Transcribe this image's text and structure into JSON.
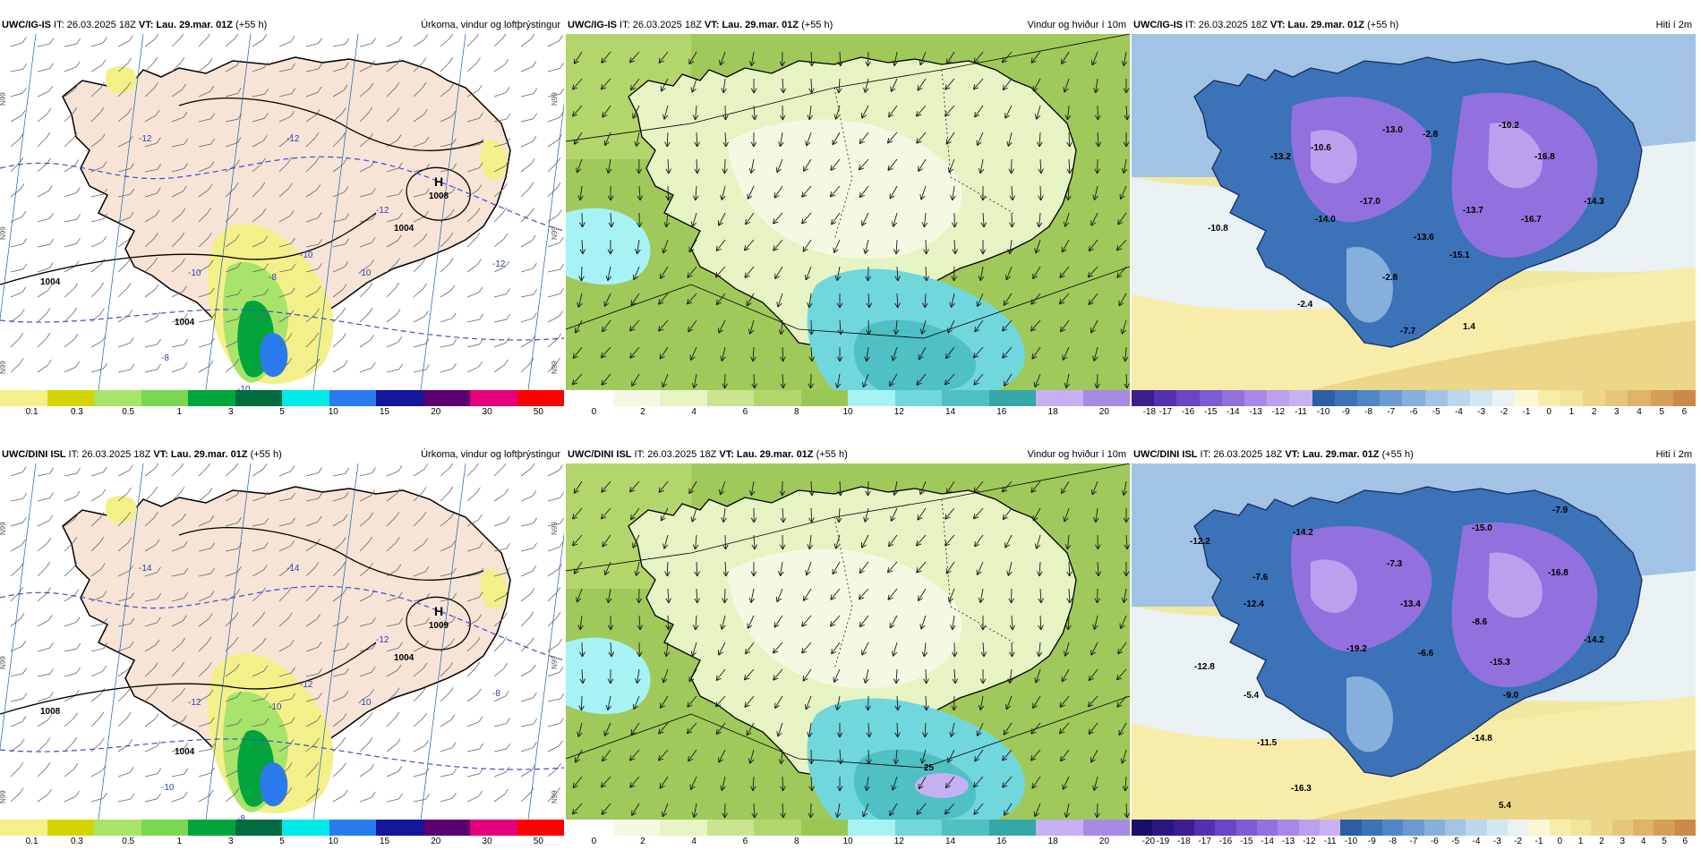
{
  "colors": {
    "land_precip": "#f7e4d6",
    "sea_precip": "#ffffff",
    "wind_bg": "#9fc95a",
    "temp_sea": "#f2e7a0"
  },
  "panels": [
    {
      "id": "p1",
      "model": "UWC/IG-IS",
      "it": " IT: 26.03.2025 18Z ",
      "vt_label": "VT: ",
      "vt_value": "Lau. 29.mar. 01Z",
      "lead": " (+55 h)",
      "title": "Úrkoma, vindur og loftþrýstingur",
      "type": "precip",
      "high": {
        "letter": "H",
        "value": "1008"
      },
      "isobars": [
        "1004",
        "1004",
        "1004"
      ],
      "temp_labels": [
        "-12",
        "-12",
        "-12",
        "-10",
        "-10",
        "-8",
        "-8",
        "-10",
        "-12",
        "-10"
      ],
      "lat_labels": [
        "N99",
        "N99",
        "N99",
        "N99",
        "N99",
        "N99"
      ],
      "colorbar": [
        "0.1",
        "0.3",
        "0.5",
        "1",
        "3",
        "5",
        "10",
        "15",
        "20",
        "30",
        "50"
      ]
    },
    {
      "id": "p2",
      "model": "UWC/IG-IS",
      "it": " IT: 26.03.2025 18Z ",
      "vt_label": "VT: ",
      "vt_value": "Lau. 29.mar. 01Z",
      "lead": " (+55 h)",
      "title": "Vindur og hviður í 10m",
      "type": "wind",
      "colorbar": [
        "0",
        "2",
        "4",
        "6",
        "8",
        "10",
        "12",
        "14",
        "16",
        "18",
        "20"
      ]
    },
    {
      "id": "p3",
      "model": "UWC/IG-IS",
      "it": " IT: 26.03.2025 18Z ",
      "vt_label": "VT: ",
      "vt_value": "Lau. 29.mar. 01Z",
      "lead": " (+55 h)",
      "title": "Hiti í 2m",
      "type": "temp",
      "values": [
        "-13.2",
        "-10.6",
        "-13.0",
        "-2.8",
        "-10.2",
        "-16.8",
        "-17.0",
        "-14.0",
        "-10.8",
        "-13.6",
        "-13.7",
        "-16.7",
        "-14.3",
        "-15.1",
        "-2.8",
        "-2.4",
        "-7.7",
        "1.4"
      ],
      "colorbar": [
        "-18",
        "-17",
        "-16",
        "-15",
        "-14",
        "-13",
        "-12",
        "-11",
        "-10",
        "-9",
        "-8",
        "-7",
        "-6",
        "-5",
        "-4",
        "-3",
        "-2",
        "-1",
        "0",
        "1",
        "2",
        "3",
        "4",
        "5",
        "6"
      ]
    },
    {
      "id": "p4",
      "model": "UWC/DINI ISL",
      "it": " IT: 26.03.2025 18Z ",
      "vt_label": "VT: ",
      "vt_value": "Lau. 29.mar. 01Z",
      "lead": " (+55 h)",
      "title": "Úrkoma, vindur og loftþrýstingur",
      "type": "precip",
      "high": {
        "letter": "H",
        "value": "1009"
      },
      "isobars": [
        "1008",
        "1004",
        "1004"
      ],
      "temp_labels": [
        "-14",
        "-14",
        "-12",
        "-12",
        "-12",
        "-10",
        "-10",
        "-8",
        "-8",
        "-10"
      ],
      "lat_labels": [
        "N99",
        "N99",
        "N99",
        "N99",
        "N99",
        "N99"
      ],
      "colorbar": [
        "0.1",
        "0.3",
        "0.5",
        "1",
        "3",
        "5",
        "10",
        "15",
        "20",
        "30",
        "50"
      ]
    },
    {
      "id": "p5",
      "model": "UWC/DINI ISL",
      "it": " IT: 26.03.2025 18Z ",
      "vt_label": "VT: ",
      "vt_value": "Lau. 29.mar. 01Z",
      "lead": " (+55 h)",
      "title": "Vindur og hviður í 10m",
      "type": "wind",
      "gust": "25",
      "colorbar": [
        "0",
        "2",
        "4",
        "6",
        "8",
        "10",
        "12",
        "14",
        "16",
        "18",
        "20"
      ]
    },
    {
      "id": "p6",
      "model": "UWC/DINI ISL",
      "it": " IT: 26.03.2025 18Z ",
      "vt_label": "VT: ",
      "vt_value": "Lau. 29.mar. 01Z",
      "lead": " (+55 h)",
      "title": "Hiti í 2m",
      "type": "temp",
      "values": [
        "-12.2",
        "-14.2",
        "-15.0",
        "-7.9",
        "-7.6",
        "-7.3",
        "-16.8",
        "-12.4",
        "-13.4",
        "-8.6",
        "-14.2",
        "-12.8",
        "-19.2",
        "-6.6",
        "-15.3",
        "-5.4",
        "-9.0",
        "-11.5",
        "-14.8",
        "-16.3",
        "5.4"
      ],
      "colorbar": [
        "-20",
        "-19",
        "-18",
        "-17",
        "-16",
        "-15",
        "-14",
        "-13",
        "-12",
        "-11",
        "-10",
        "-9",
        "-8",
        "-7",
        "-6",
        "-5",
        "-4",
        "-3",
        "-2",
        "-1",
        "0",
        "1",
        "2",
        "3",
        "4",
        "5",
        "6"
      ]
    }
  ]
}
